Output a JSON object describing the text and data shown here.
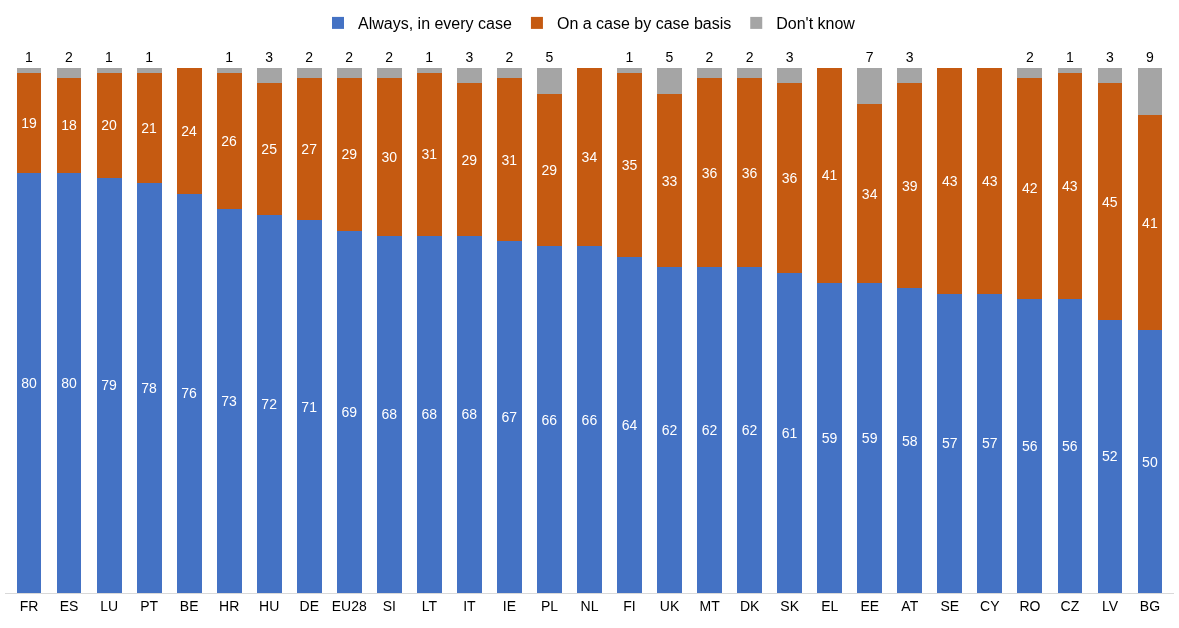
{
  "chart_data": {
    "type": "bar",
    "stacked": true,
    "data_labels": true,
    "legend": "top",
    "categories": [
      "FR",
      "ES",
      "LU",
      "PT",
      "BE",
      "HR",
      "HU",
      "DE",
      "EU28",
      "SI",
      "LT",
      "IT",
      "IE",
      "PL",
      "NL",
      "FI",
      "UK",
      "MT",
      "DK",
      "SK",
      "EL",
      "EE",
      "AT",
      "SE",
      "CY",
      "RO",
      "CZ",
      "LV",
      "BG"
    ],
    "series": [
      {
        "name": "Always, in every case",
        "color": "#4472c4",
        "values": [
          80,
          80,
          79,
          78,
          76,
          73,
          72,
          71,
          69,
          68,
          68,
          68,
          67,
          66,
          66,
          64,
          62,
          62,
          62,
          61,
          59,
          59,
          58,
          57,
          57,
          56,
          56,
          52,
          50
        ]
      },
      {
        "name": "On a case by case basis",
        "color": "#c55a11",
        "values": [
          19,
          18,
          20,
          21,
          24,
          26,
          25,
          27,
          29,
          30,
          31,
          29,
          31,
          29,
          34,
          35,
          33,
          36,
          36,
          36,
          41,
          34,
          39,
          43,
          43,
          42,
          43,
          45,
          41
        ]
      },
      {
        "name": "Don't know",
        "color": "#a5a5a5",
        "values": [
          1,
          2,
          1,
          1,
          null,
          1,
          3,
          2,
          2,
          2,
          1,
          3,
          2,
          5,
          null,
          1,
          5,
          2,
          2,
          3,
          null,
          7,
          3,
          null,
          null,
          2,
          1,
          3,
          9
        ]
      }
    ]
  }
}
